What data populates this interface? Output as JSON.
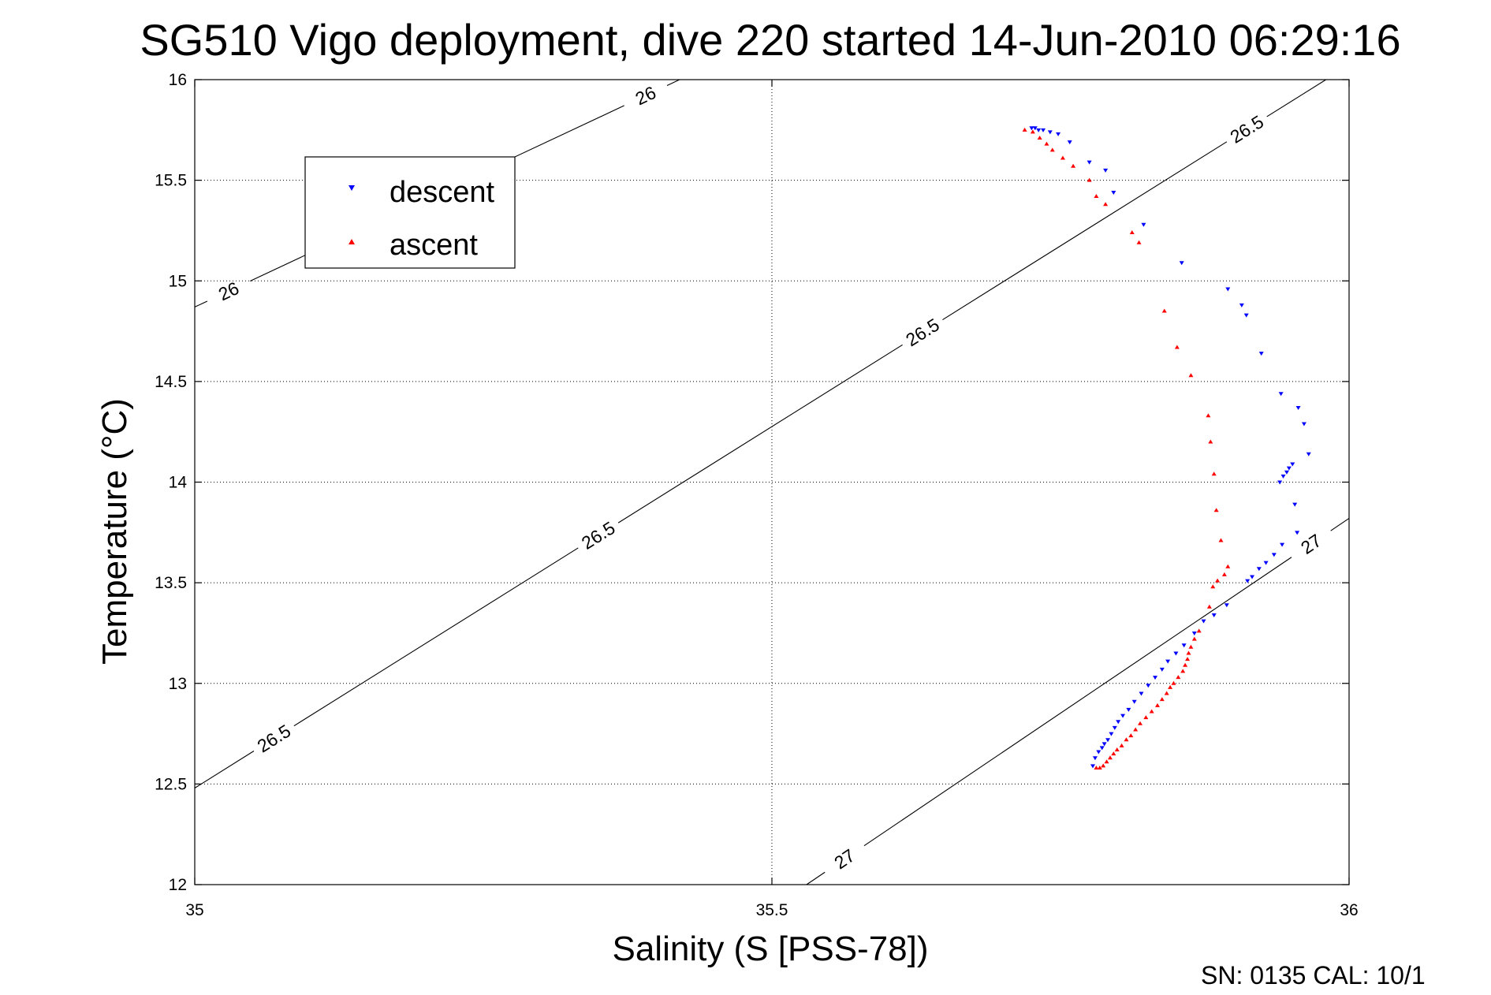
{
  "chart_data": {
    "type": "scatter",
    "title": "SG510 Vigo deployment, dive 220 started 14-Jun-2010 06:29:16",
    "xlabel": "Salinity (S [PSS-78])",
    "ylabel": "Temperature (°C)",
    "xlim": [
      35,
      36
    ],
    "ylim": [
      12,
      16
    ],
    "xticks": [
      "35",
      "35.5",
      "36"
    ],
    "yticks": [
      "12",
      "12.5",
      "13",
      "13.5",
      "14",
      "14.5",
      "15",
      "15.5",
      "16"
    ],
    "grid": true,
    "legend_position": "top-left",
    "series": [
      {
        "name": "descent",
        "color": "#0000ff",
        "marker": "triangle-down",
        "x": [
          35.725,
          35.728,
          35.731,
          35.735,
          35.741,
          35.748,
          35.758,
          35.775,
          35.789,
          35.796,
          35.822,
          35.855,
          35.895,
          35.907,
          35.911,
          35.924,
          35.941,
          35.956,
          35.961,
          35.965,
          35.951,
          35.948,
          35.946,
          35.943,
          35.94,
          35.953,
          35.955,
          35.942,
          35.935,
          35.928,
          35.922,
          35.916,
          35.912,
          35.894,
          35.883,
          35.874,
          35.866,
          35.857,
          35.85,
          35.843,
          35.838,
          35.832,
          35.826,
          35.82,
          35.814,
          35.809,
          35.804,
          35.8,
          35.797,
          35.794,
          35.791,
          35.788,
          35.786,
          35.783,
          35.78,
          35.778
        ],
        "y": [
          15.76,
          15.76,
          15.75,
          15.75,
          15.74,
          15.73,
          15.69,
          15.59,
          15.55,
          15.44,
          15.28,
          15.09,
          14.96,
          14.88,
          14.83,
          14.64,
          14.44,
          14.37,
          14.29,
          14.14,
          14.09,
          14.07,
          14.05,
          14.03,
          14.0,
          13.89,
          13.75,
          13.69,
          13.64,
          13.6,
          13.57,
          13.53,
          13.51,
          13.39,
          13.34,
          13.31,
          13.25,
          13.19,
          13.15,
          13.11,
          13.07,
          13.03,
          12.99,
          12.95,
          12.91,
          12.87,
          12.84,
          12.81,
          12.78,
          12.75,
          12.72,
          12.7,
          12.68,
          12.66,
          12.63,
          12.59
        ]
      },
      {
        "name": "ascent",
        "color": "#ff0000",
        "marker": "triangle-up",
        "x": [
          35.719,
          35.726,
          35.732,
          35.738,
          35.743,
          35.752,
          35.761,
          35.775,
          35.781,
          35.789,
          35.812,
          35.818,
          35.84,
          35.851,
          35.863,
          35.878,
          35.88,
          35.883,
          35.885,
          35.889,
          35.895,
          35.892,
          35.886,
          35.882,
          35.879,
          35.87,
          35.866,
          35.863,
          35.861,
          35.86,
          35.858,
          35.856,
          35.852,
          35.848,
          35.845,
          35.842,
          35.838,
          35.834,
          35.829,
          35.824,
          35.819,
          35.815,
          35.811,
          35.807,
          35.803,
          35.799,
          35.796,
          35.793,
          35.79,
          35.787,
          35.784,
          35.781
        ],
        "y": [
          15.75,
          15.74,
          15.71,
          15.68,
          15.65,
          15.61,
          15.57,
          15.5,
          15.42,
          15.38,
          15.24,
          15.19,
          14.85,
          14.67,
          14.53,
          14.33,
          14.2,
          14.04,
          13.86,
          13.71,
          13.58,
          13.54,
          13.51,
          13.48,
          13.38,
          13.26,
          13.22,
          13.18,
          13.15,
          13.12,
          13.09,
          13.06,
          13.03,
          13.0,
          12.98,
          12.95,
          12.92,
          12.89,
          12.86,
          12.83,
          12.8,
          12.77,
          12.74,
          12.72,
          12.69,
          12.67,
          12.65,
          12.63,
          12.61,
          12.59,
          12.58,
          12.58
        ]
      }
    ],
    "contours": [
      {
        "label": "26",
        "labels": [
          "26",
          "26"
        ],
        "p1": [
          35.0,
          14.87
        ],
        "p2": [
          35.42,
          16.0
        ]
      },
      {
        "label": "26.5",
        "labels": [
          "26.5",
          "26.5",
          "26.5",
          "26.5"
        ],
        "p1": [
          35.0,
          12.48
        ],
        "p2": [
          35.98,
          16.0
        ]
      },
      {
        "label": "27",
        "labels": [
          "27",
          "27"
        ],
        "p1": [
          35.53,
          12.0
        ],
        "p2": [
          36.0,
          13.82
        ]
      }
    ]
  },
  "footer": "SN: 0135  CAL: 10/1"
}
